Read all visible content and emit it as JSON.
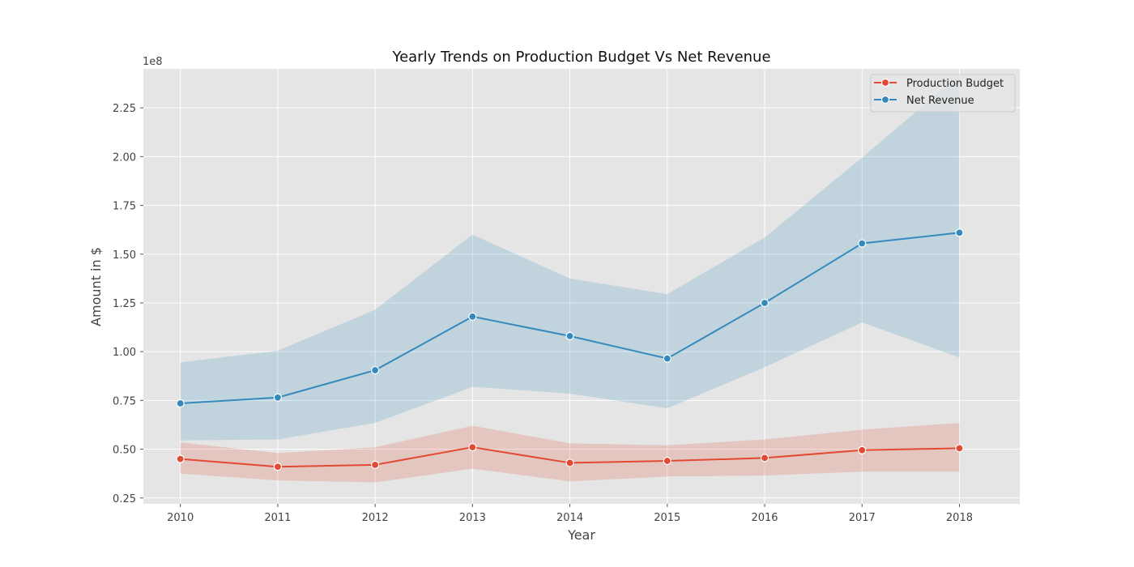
{
  "chart_data": {
    "type": "line",
    "title": "Yearly Trends on Production Budget Vs Net Revenue",
    "xlabel": "Year",
    "ylabel": "Amount in $",
    "y_offset_label": "1e8",
    "x": [
      2010,
      2011,
      2012,
      2013,
      2014,
      2015,
      2016,
      2017,
      2018
    ],
    "x_tick_labels": [
      "2010",
      "2011",
      "2012",
      "2013",
      "2014",
      "2015",
      "2016",
      "2017",
      "2018"
    ],
    "y_ticks": [
      0.25,
      0.5,
      0.75,
      1.0,
      1.25,
      1.5,
      1.75,
      2.0,
      2.25
    ],
    "y_tick_labels": [
      "0.25",
      "0.50",
      "0.75",
      "1.00",
      "1.25",
      "1.50",
      "1.75",
      "2.00",
      "2.25"
    ],
    "xlim": [
      2009.62,
      2018.62
    ],
    "ylim": [
      0.22,
      2.45
    ],
    "grid": true,
    "legend_position": "top-right",
    "series": [
      {
        "name": "Production Budget",
        "color": "#E24A33",
        "values": [
          0.45,
          0.41,
          0.42,
          0.51,
          0.43,
          0.44,
          0.455,
          0.495,
          0.505
        ],
        "ci_lower": [
          0.375,
          0.34,
          0.33,
          0.4,
          0.335,
          0.36,
          0.365,
          0.385,
          0.385
        ],
        "ci_upper": [
          0.535,
          0.48,
          0.51,
          0.62,
          0.53,
          0.52,
          0.55,
          0.6,
          0.635
        ]
      },
      {
        "name": "Net Revenue",
        "color": "#348ABD",
        "values": [
          0.735,
          0.765,
          0.905,
          1.18,
          1.08,
          0.965,
          1.25,
          1.555,
          1.61
        ],
        "ci_lower": [
          0.545,
          0.55,
          0.635,
          0.82,
          0.785,
          0.71,
          0.92,
          1.15,
          0.97
        ],
        "ci_upper": [
          0.945,
          1.005,
          1.215,
          1.6,
          1.375,
          1.295,
          1.585,
          1.995,
          2.42
        ]
      }
    ]
  }
}
